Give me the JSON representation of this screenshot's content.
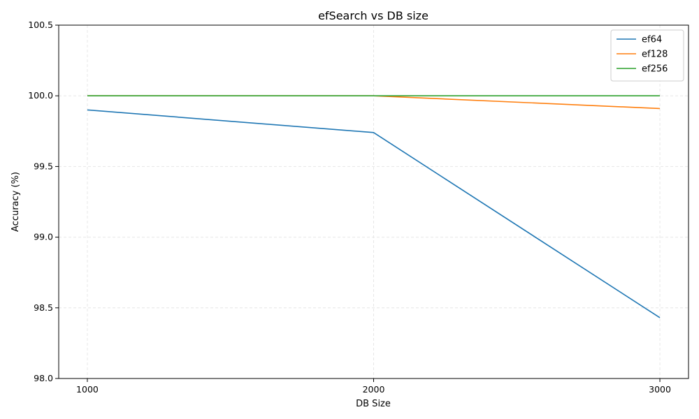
{
  "chart_data": {
    "type": "line",
    "title": "efSearch vs DB size",
    "xlabel": "DB Size",
    "ylabel": "Accuracy (%)",
    "x": [
      1000,
      2000,
      3000
    ],
    "xlim": [
      900,
      3100
    ],
    "ylim": [
      98.0,
      100.5
    ],
    "xticks": [
      1000,
      2000,
      3000
    ],
    "xtick_labels": [
      "1000",
      "2000",
      "3000"
    ],
    "yticks": [
      98.0,
      98.5,
      99.0,
      99.5,
      100.0,
      100.5
    ],
    "ytick_labels": [
      "98.0",
      "98.5",
      "99.0",
      "99.5",
      "100.0",
      "100.5"
    ],
    "grid": true,
    "legend_position": "top-right",
    "series": [
      {
        "name": "ef64",
        "color": "#1f77b4",
        "values": [
          99.9,
          99.74,
          98.43
        ]
      },
      {
        "name": "ef128",
        "color": "#ff7f0e",
        "values": [
          100.0,
          100.0,
          99.91
        ]
      },
      {
        "name": "ef256",
        "color": "#2ca02c",
        "values": [
          100.0,
          100.0,
          100.0
        ]
      }
    ]
  }
}
